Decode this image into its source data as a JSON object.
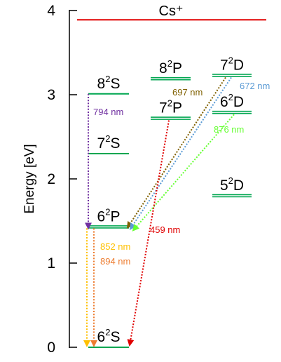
{
  "colors": {
    "axis": "#000000",
    "level": "#00a650",
    "ionization": "#e00000"
  },
  "chart_data": {
    "type": "energy-level-diagram",
    "ylabel": "Energy [eV]",
    "ylim": [
      0,
      4
    ],
    "yticks": [
      "0",
      "1",
      "2",
      "3",
      "4"
    ],
    "ionization": {
      "label": "Cs⁺",
      "energy": 3.89,
      "color": "#e00000"
    },
    "levels": [
      {
        "id": "6S",
        "n": "6",
        "sup": "2",
        "l": "S",
        "energy": 0.0,
        "column": 1,
        "style": "single"
      },
      {
        "id": "6P",
        "n": "6",
        "sup": "2",
        "l": "P",
        "energy": 1.43,
        "column": 1,
        "style": "double"
      },
      {
        "id": "7S",
        "n": "7",
        "sup": "2",
        "l": "S",
        "energy": 2.3,
        "column": 1,
        "style": "single"
      },
      {
        "id": "8S",
        "n": "8",
        "sup": "2",
        "l": "S",
        "energy": 3.01,
        "column": 1,
        "style": "single"
      },
      {
        "id": "7P",
        "n": "7",
        "sup": "2",
        "l": "P",
        "energy": 2.72,
        "column": 2,
        "style": "double"
      },
      {
        "id": "8P",
        "n": "8",
        "sup": "2",
        "l": "P",
        "energy": 3.19,
        "column": 2,
        "style": "double"
      },
      {
        "id": "5D",
        "n": "5",
        "sup": "2",
        "l": "D",
        "energy": 1.8,
        "column": 3,
        "style": "double"
      },
      {
        "id": "6D",
        "n": "6",
        "sup": "2",
        "l": "D",
        "energy": 2.79,
        "column": 3,
        "style": "double"
      },
      {
        "id": "7D",
        "n": "7",
        "sup": "2",
        "l": "D",
        "energy": 3.23,
        "column": 3,
        "style": "double"
      }
    ],
    "transitions": [
      {
        "wavelength": "794 nm",
        "from": "8S",
        "to": "6P",
        "color": "#7030a0"
      },
      {
        "wavelength": "697 nm",
        "from": "7D",
        "to": "6P",
        "color": "#7f6000"
      },
      {
        "wavelength": "672 nm",
        "from": "7D",
        "to": "6P",
        "color": "#5b9bd5"
      },
      {
        "wavelength": "876 nm",
        "from": "6D",
        "to": "6P",
        "color": "#66ff33"
      },
      {
        "wavelength": "459 nm",
        "from": "7P",
        "to": "6S",
        "color": "#e00000"
      },
      {
        "wavelength": "852 nm",
        "from": "6P",
        "to": "6S",
        "color": "#ffc000"
      },
      {
        "wavelength": "894 nm",
        "from": "6P",
        "to": "6S",
        "color": "#ed7d31"
      }
    ]
  }
}
